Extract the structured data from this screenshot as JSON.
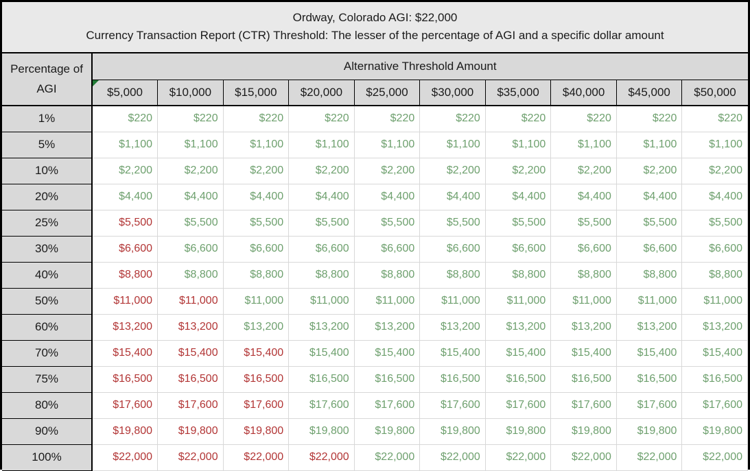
{
  "colors": {
    "within_threshold_text": "#6EA06E",
    "exceeds_threshold_text": "#B23535",
    "header_background": "#D9D9D9",
    "title_background": "#E9E9E9",
    "grid_line": "#D8D8D8",
    "outer_border": "#000000",
    "error_flag_green": "#217A36"
  },
  "chart_data": {
    "type": "table",
    "title": "Ordway, Colorado AGI: $22,000",
    "subtitle": "Currency Transaction Report (CTR) Threshold: The lesser of the percentage of AGI and a specific dollar amount",
    "row_header_label": "Percentage of AGI",
    "column_group_label": "Alternative Threshold Amount",
    "column_headers": [
      "$5,000",
      "$10,000",
      "$15,000",
      "$20,000",
      "$25,000",
      "$30,000",
      "$35,000",
      "$40,000",
      "$45,000",
      "$50,000"
    ],
    "first_column_header_has_error_flag": true,
    "rows": [
      {
        "percentage": "1%",
        "value": "$220",
        "red_column_count": 0
      },
      {
        "percentage": "5%",
        "value": "$1,100",
        "red_column_count": 0
      },
      {
        "percentage": "10%",
        "value": "$2,200",
        "red_column_count": 0
      },
      {
        "percentage": "20%",
        "value": "$4,400",
        "red_column_count": 0
      },
      {
        "percentage": "25%",
        "value": "$5,500",
        "red_column_count": 1
      },
      {
        "percentage": "30%",
        "value": "$6,600",
        "red_column_count": 1
      },
      {
        "percentage": "40%",
        "value": "$8,800",
        "red_column_count": 1
      },
      {
        "percentage": "50%",
        "value": "$11,000",
        "red_column_count": 2
      },
      {
        "percentage": "60%",
        "value": "$13,200",
        "red_column_count": 2
      },
      {
        "percentage": "70%",
        "value": "$15,400",
        "red_column_count": 3
      },
      {
        "percentage": "75%",
        "value": "$16,500",
        "red_column_count": 3
      },
      {
        "percentage": "80%",
        "value": "$17,600",
        "red_column_count": 3
      },
      {
        "percentage": "90%",
        "value": "$19,800",
        "red_column_count": 3
      },
      {
        "percentage": "100%",
        "value": "$22,000",
        "red_column_count": 4
      }
    ]
  }
}
